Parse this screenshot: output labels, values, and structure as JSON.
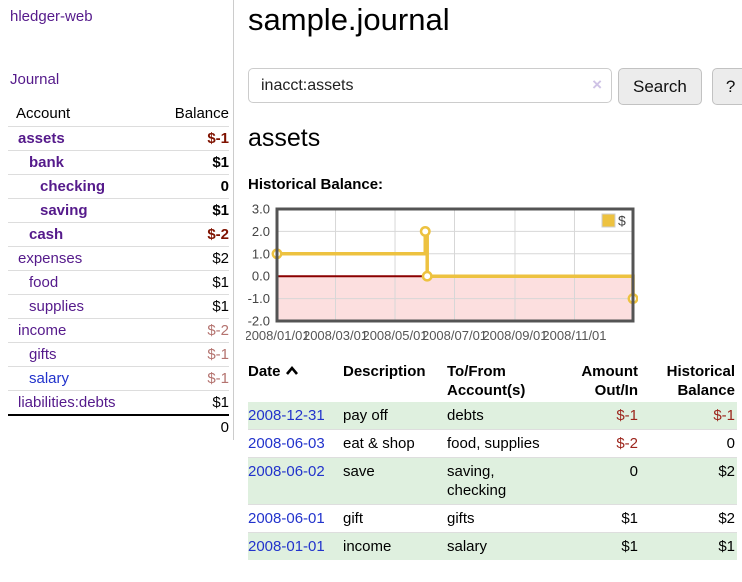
{
  "app": {
    "brand": "hledger-web",
    "nav_journal": "Journal"
  },
  "sidebar": {
    "table": {
      "col_account": "Account",
      "col_balance": "Balance"
    },
    "accounts": [
      {
        "name": "assets",
        "level": 0,
        "bold": true,
        "blue": false,
        "balance": "$-1"
      },
      {
        "name": "bank",
        "level": 1,
        "bold": true,
        "blue": false,
        "balance": "$1"
      },
      {
        "name": "checking",
        "level": 2,
        "bold": true,
        "blue": false,
        "balance": "0"
      },
      {
        "name": "saving",
        "level": 2,
        "bold": true,
        "blue": false,
        "balance": "$1"
      },
      {
        "name": "cash",
        "level": 1,
        "bold": true,
        "blue": false,
        "balance": "$-2"
      },
      {
        "name": "expenses",
        "level": 0,
        "bold": false,
        "blue": false,
        "balance": "$2"
      },
      {
        "name": "food",
        "level": 1,
        "bold": false,
        "blue": false,
        "balance": "$1"
      },
      {
        "name": "supplies",
        "level": 1,
        "bold": false,
        "blue": false,
        "balance": "$1"
      },
      {
        "name": "income",
        "level": 0,
        "bold": false,
        "blue": false,
        "balance": "$-2"
      },
      {
        "name": "gifts",
        "level": 1,
        "bold": false,
        "blue": false,
        "balance": "$-1"
      },
      {
        "name": "salary",
        "level": 1,
        "bold": false,
        "blue": true,
        "balance": "$-1"
      },
      {
        "name": "liabilities:debts",
        "level": 0,
        "bold": false,
        "blue": false,
        "balance": "$1"
      }
    ],
    "total": "0"
  },
  "header": {
    "title": "sample.journal"
  },
  "search": {
    "value": "inacct:assets",
    "clear_icon": "×",
    "button": "Search",
    "help": "?"
  },
  "account_page": {
    "heading": "assets",
    "chart_label": "Historical Balance:"
  },
  "chart_data": {
    "type": "line",
    "step": true,
    "title": "Historical Balance:",
    "series": [
      {
        "name": "$",
        "color": "#edc240",
        "points": [
          [
            "2008-01-01",
            1
          ],
          [
            "2008-06-01",
            2
          ],
          [
            "2008-06-03",
            0
          ],
          [
            "2008-12-31",
            -1
          ]
        ]
      }
    ],
    "x_range": [
      "2008-01-01",
      "2008-12-31"
    ],
    "ylim": [
      -2,
      3
    ],
    "yticks": [
      3,
      2,
      1,
      0,
      -1,
      -2
    ],
    "ytick_labels": [
      "3.0",
      "2.0",
      "1.0",
      "0.0",
      "-1.0",
      "-2.0"
    ],
    "xticks": [
      {
        "date": "2008-01-01",
        "label": "2008/01/01"
      },
      {
        "date": "2008-03-01",
        "label": "2008/03/01"
      },
      {
        "date": "2008-05-01",
        "label": "2008/05/01"
      },
      {
        "date": "2008-07-01",
        "label": "2008/07/01"
      },
      {
        "date": "2008-09-01",
        "label": "2008/09/01"
      },
      {
        "date": "2008-11-01",
        "label": "2008/11/01"
      }
    ],
    "grid": true,
    "legend_position": "top-right",
    "negative_fill": "#fcdfdf",
    "zero_line_color": "#8b0000",
    "grid_color": "#d7d7d7",
    "border_color": "#545454"
  },
  "register": {
    "columns": [
      "Date",
      "Description",
      "To/From Account(s)",
      "Amount Out/In",
      "Historical Balance"
    ],
    "sort": {
      "column": "Date",
      "direction": "ascending"
    },
    "rows": [
      {
        "date": "2008-12-31",
        "description": "pay off",
        "accounts": "debts",
        "amount": "$-1",
        "balance": "$-1"
      },
      {
        "date": "2008-06-03",
        "description": "eat & shop",
        "accounts": "food, supplies",
        "amount": "$-2",
        "balance": "0"
      },
      {
        "date": "2008-06-02",
        "description": "save",
        "accounts": "saving, checking",
        "amount": "0",
        "balance": "$2"
      },
      {
        "date": "2008-06-01",
        "description": "gift",
        "accounts": "gifts",
        "amount": "$1",
        "balance": "$2"
      },
      {
        "date": "2008-01-01",
        "description": "income",
        "accounts": "salary",
        "amount": "$1",
        "balance": "$1"
      }
    ]
  },
  "colors": {
    "link_purple": "#551a8b",
    "link_blue": "#2233cc",
    "negative_bold": "#7f1200",
    "negative_dim": "#b4736f",
    "negative_table": "#9c251c",
    "row_green": "#dff0df",
    "series_gold": "#edc240",
    "negative_area_pink": "#fcdfdf",
    "zero_line_red": "#8b0000"
  }
}
